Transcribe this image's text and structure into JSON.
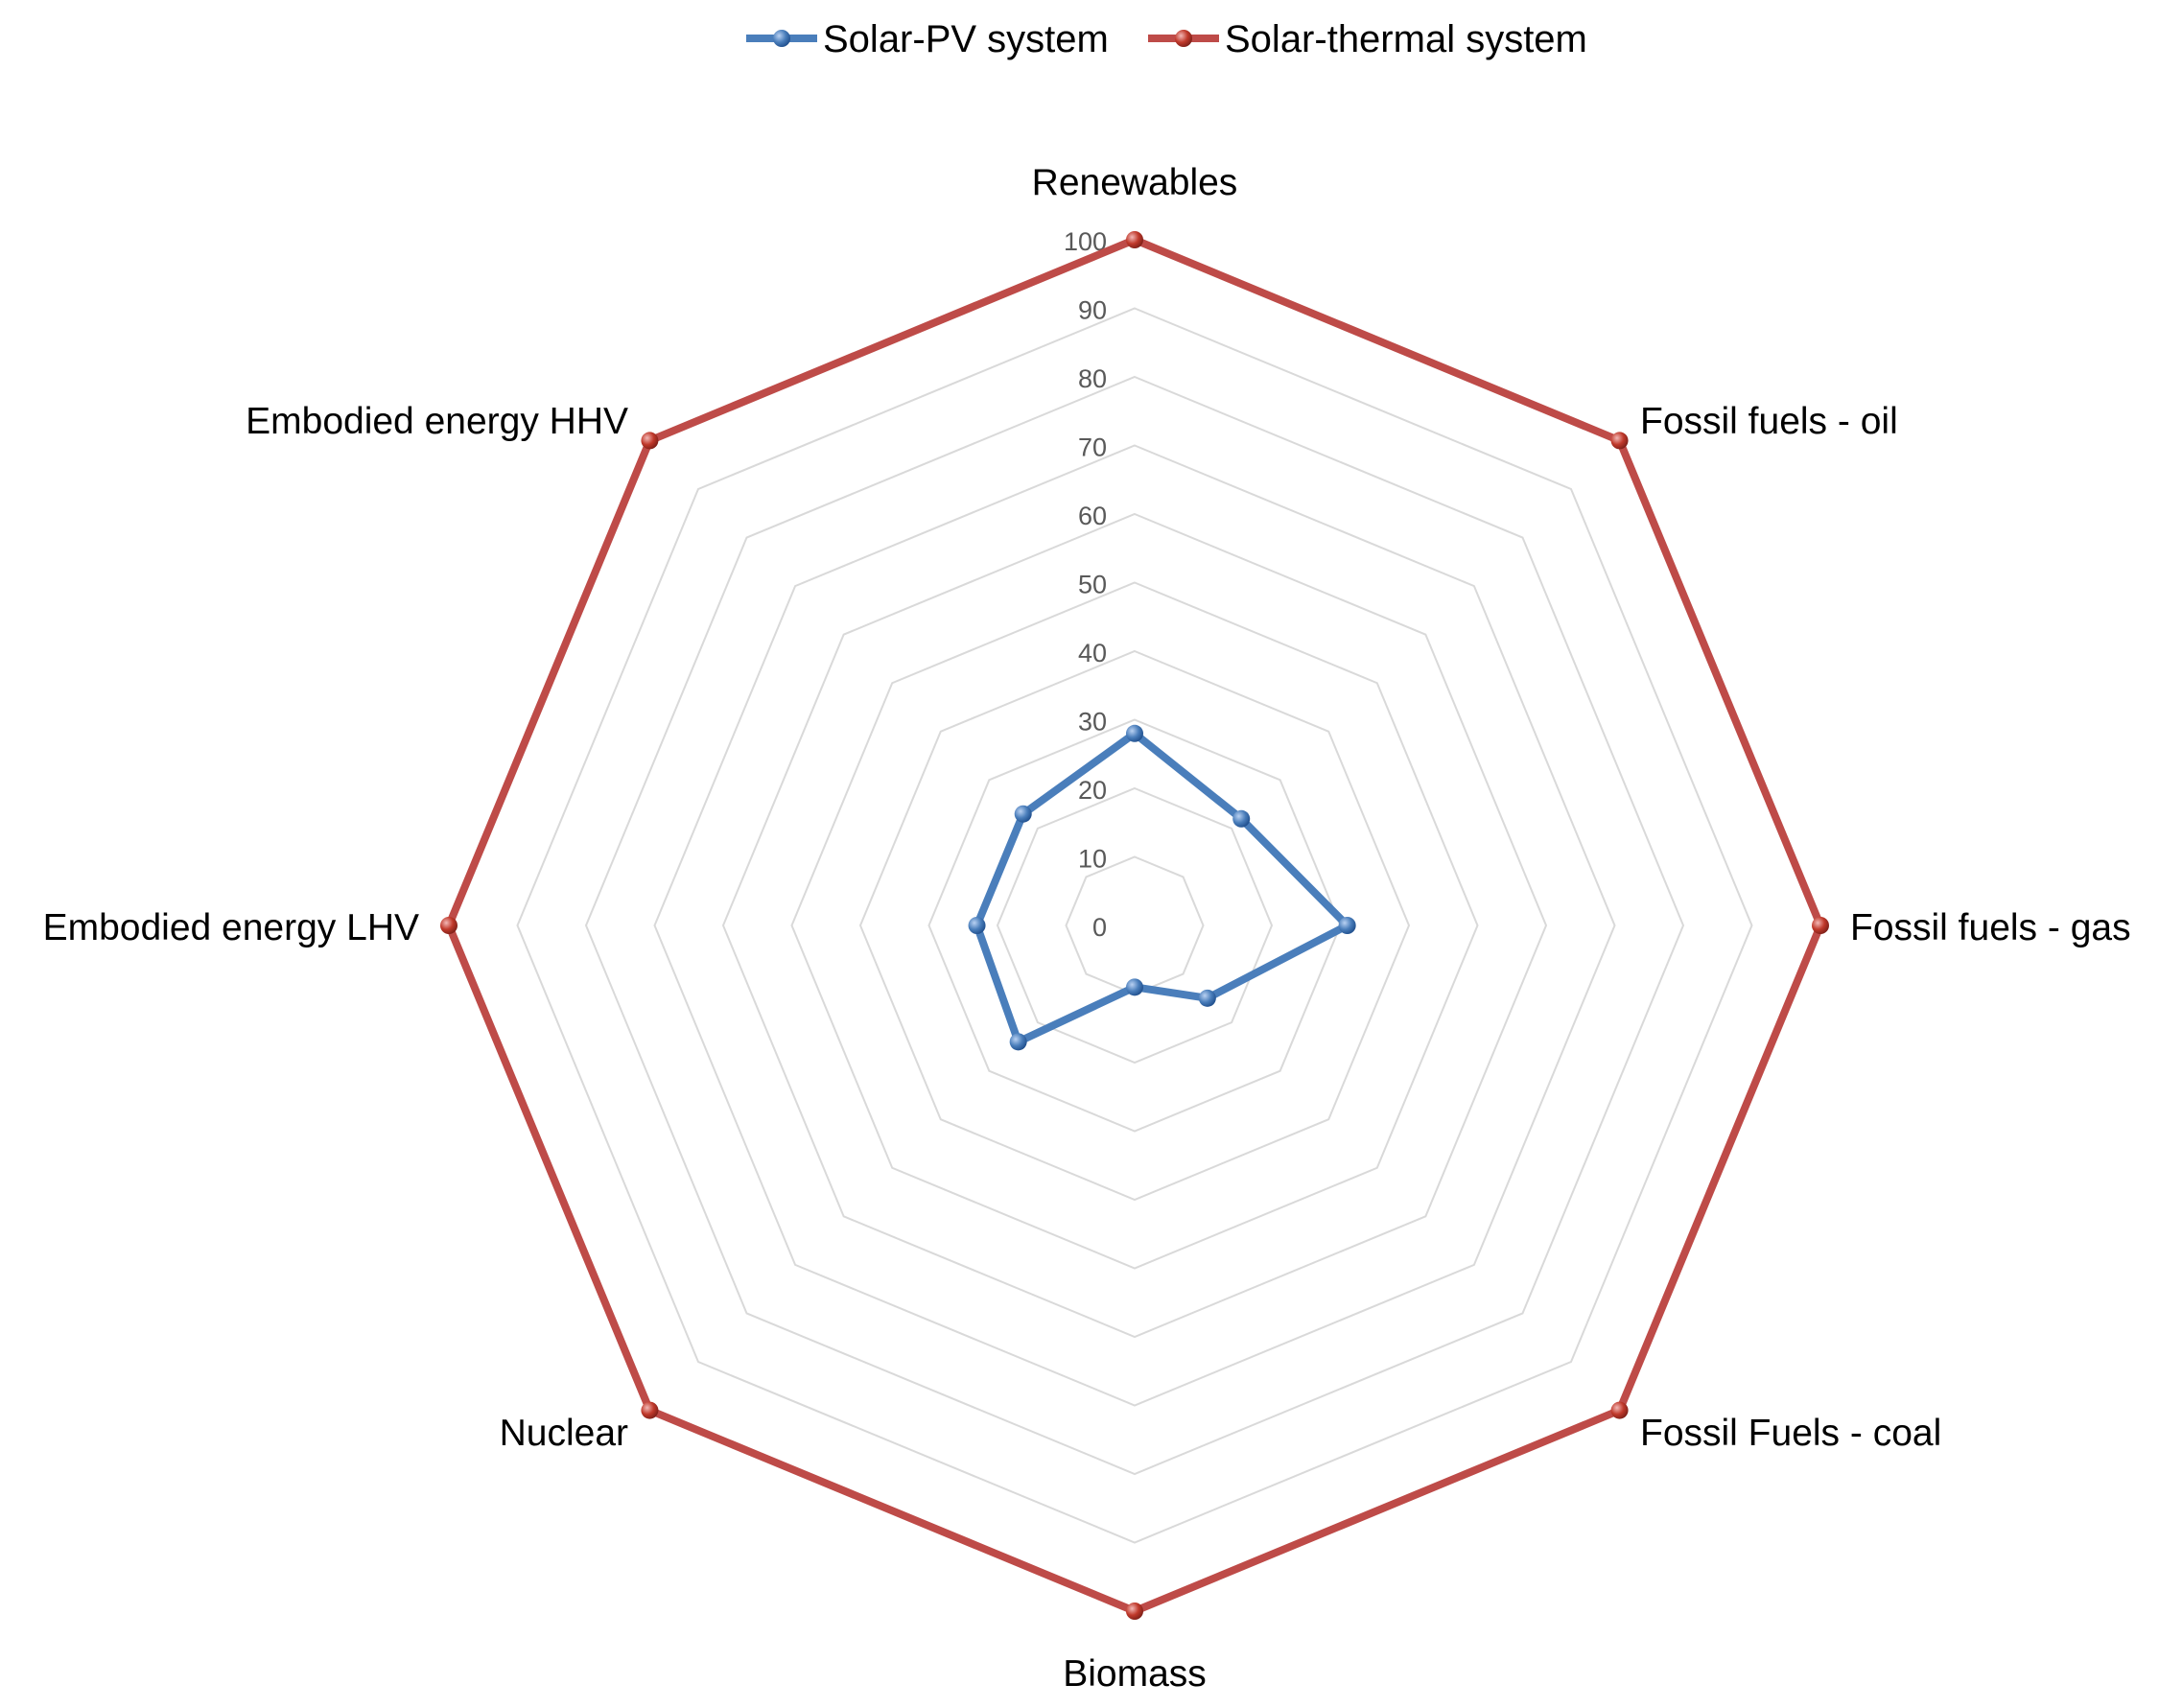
{
  "chart_data": {
    "type": "radar",
    "title": "",
    "categories": [
      "Renewables",
      "Fossil fuels - oil",
      "Fossil fuels  - gas",
      "Fossil Fuels - coal",
      "Biomass",
      "Nuclear",
      "Embodied energy LHV",
      "Embodied energy HHV"
    ],
    "rlim": [
      0,
      100
    ],
    "ticks": [
      0,
      10,
      20,
      30,
      40,
      50,
      60,
      70,
      80,
      90,
      100
    ],
    "grid": true,
    "legend_position": "top",
    "series": [
      {
        "name": "Solar-PV system",
        "color": "#4a7ebb",
        "marker_color": "#3a6fc4",
        "values": [
          28,
          22,
          31,
          15,
          9,
          24,
          23,
          23
        ]
      },
      {
        "name": "Solar-thermal system",
        "color": "#be4b48",
        "marker_color": "#c0392b",
        "values": [
          100,
          100,
          100,
          100,
          100,
          100,
          100,
          100
        ]
      }
    ]
  }
}
